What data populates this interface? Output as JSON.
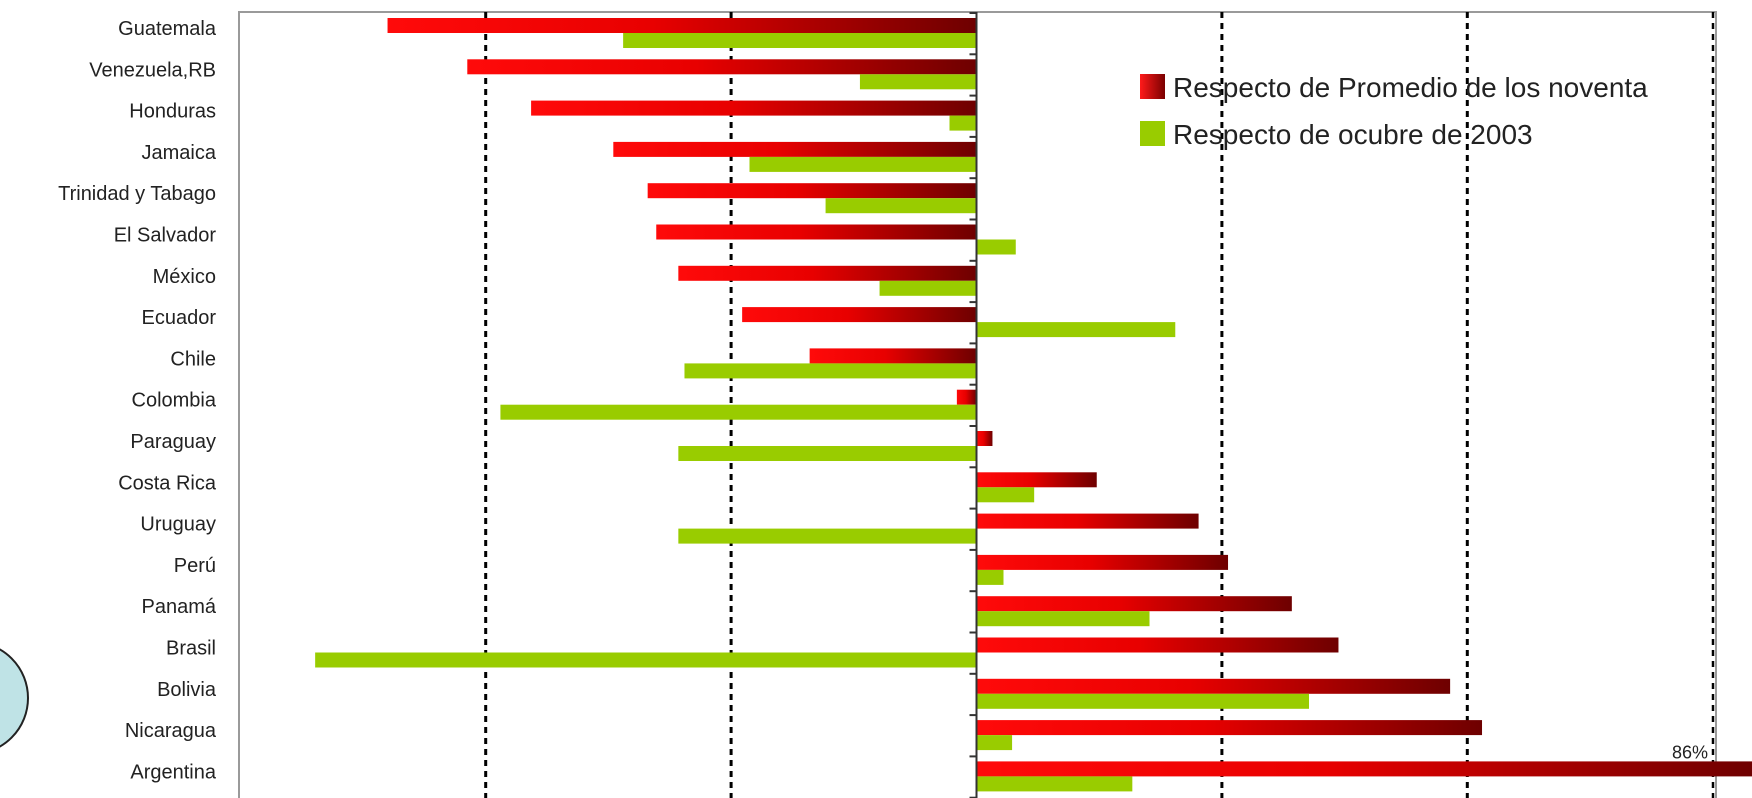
{
  "chart_data": {
    "type": "bar",
    "orientation": "horizontal",
    "categories": [
      "Guatemala",
      "Venezuela,RB",
      "Honduras",
      "Jamaica",
      "Trinidad y Tabago",
      "El Salvador",
      "México",
      "Ecuador",
      "Chile",
      "Colombia",
      "Paraguay",
      "Costa Rica",
      "Uruguay",
      "Perú",
      "Panamá",
      "Brasil",
      "Bolivia",
      "Nicaragua",
      "Argentina"
    ],
    "series": [
      {
        "name": "Respecto de Promedio de los noventa",
        "color": "#cc0000",
        "values": [
          -48,
          -41.5,
          -36.3,
          -29.6,
          -26.8,
          -26.1,
          -24.3,
          -19.1,
          -13.6,
          -1.6,
          1.3,
          9.8,
          18.1,
          20.5,
          25.7,
          29.5,
          38.6,
          41.2,
          86
        ]
      },
      {
        "name": "Respecto de ocubre de 2003",
        "color": "#99cc00",
        "values": [
          -28.8,
          -9.5,
          -2.2,
          -18.5,
          -12.3,
          3.2,
          -7.9,
          16.2,
          -23.8,
          -38.8,
          -24.3,
          4.7,
          -24.3,
          2.2,
          14.1,
          -53.9,
          27.1,
          2.9,
          12.7
        ]
      }
    ],
    "data_labels": [
      {
        "category": "Argentina",
        "text": "86%"
      }
    ],
    "grid": true,
    "gridlines": "vertical dotted",
    "legend": "top-right"
  }
}
